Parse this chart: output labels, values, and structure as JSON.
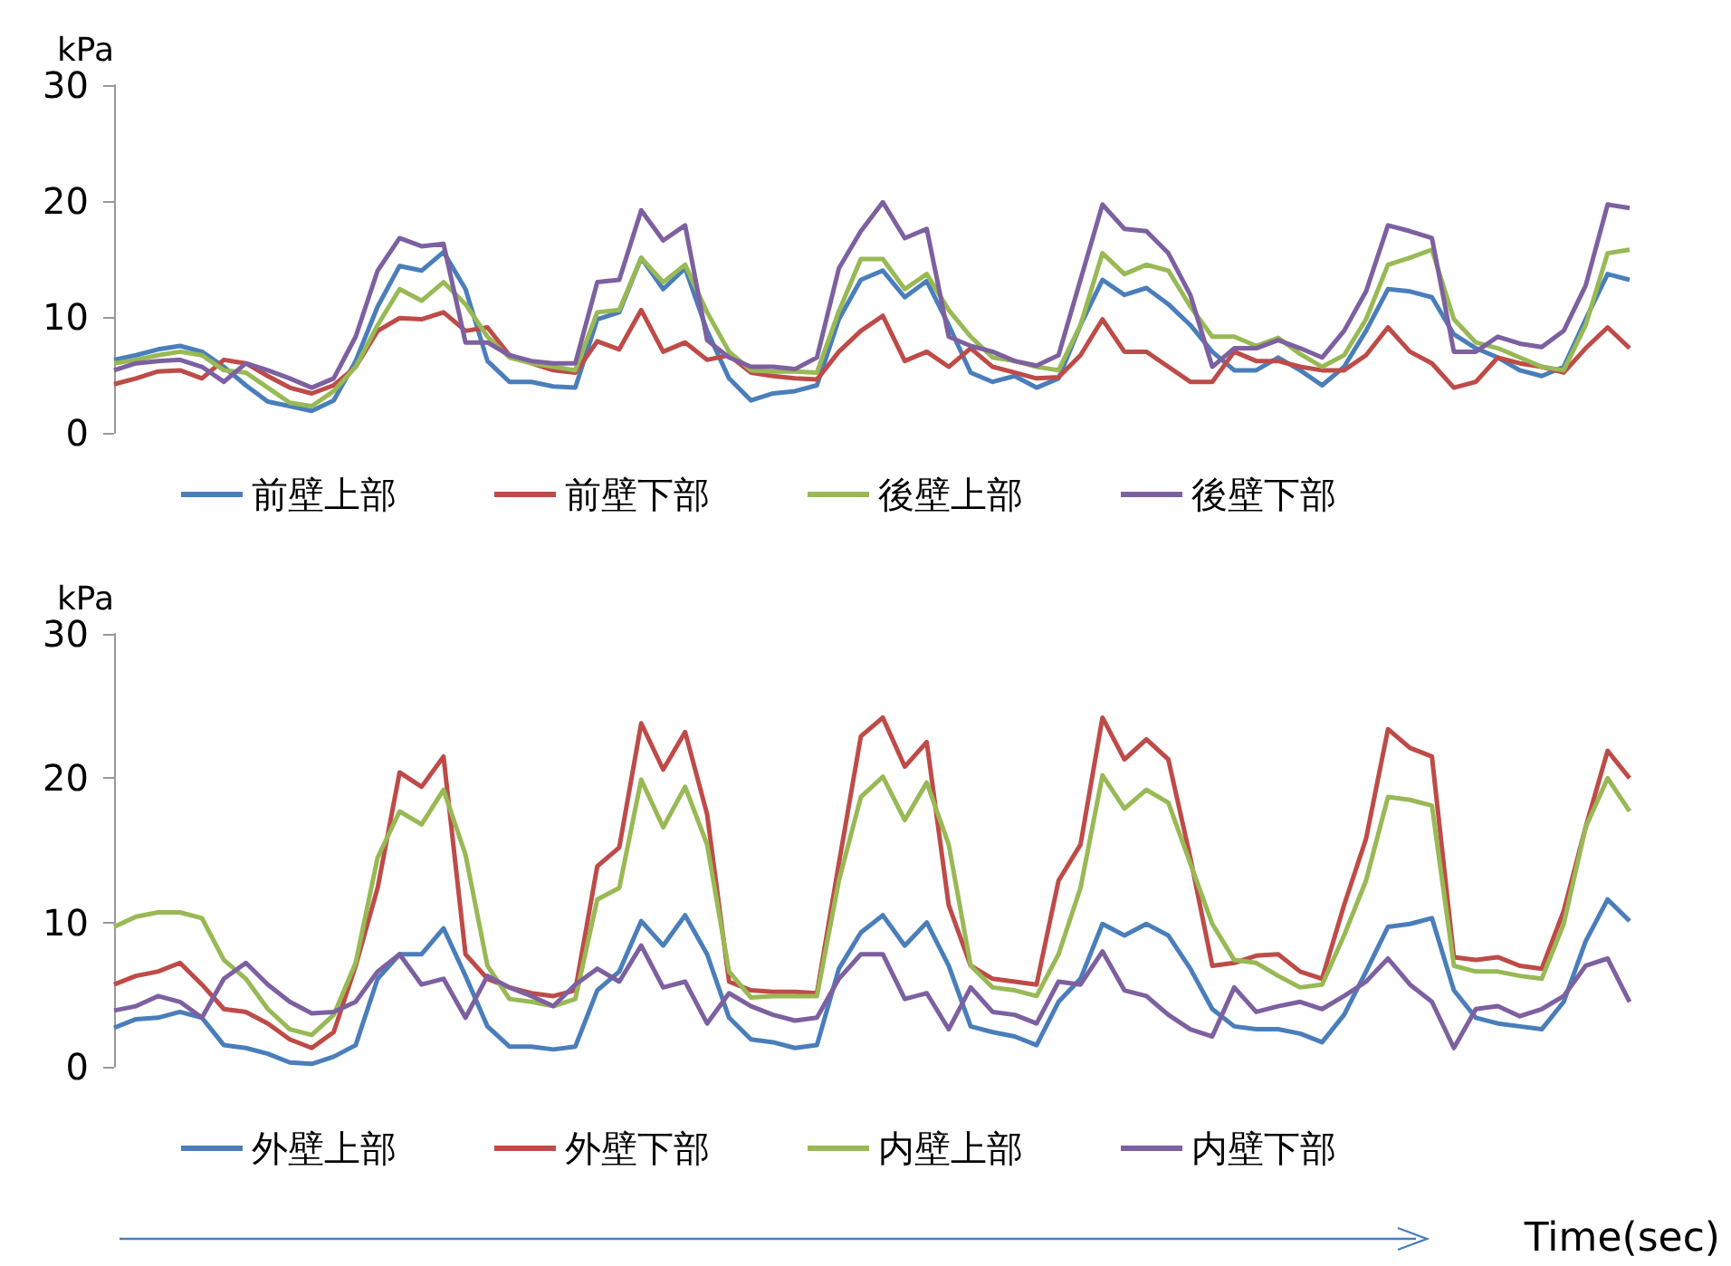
{
  "chart_data": [
    {
      "type": "line",
      "ylabel": "kPa",
      "ylim": [
        0,
        30
      ],
      "yticks": [
        0,
        10,
        20,
        30
      ],
      "grid": false,
      "legend": "bottom",
      "marker": "none",
      "line_style": "solid",
      "categories": [
        null,
        null,
        null,
        null,
        null,
        null,
        null,
        null,
        null,
        null,
        null,
        null,
        null,
        null,
        null,
        null,
        null,
        null,
        null,
        null,
        null,
        null,
        null,
        null,
        null,
        null,
        null,
        null,
        null,
        null,
        null,
        null,
        null,
        null,
        null,
        null,
        null,
        null,
        null,
        null,
        null,
        null,
        null,
        null,
        null,
        null,
        null,
        null,
        null,
        null,
        null,
        null,
        null,
        null,
        null,
        null,
        null,
        null,
        null,
        null,
        null,
        null,
        null,
        null,
        null,
        null,
        null,
        null,
        null,
        null
      ],
      "series": [
        {
          "name": "前壁上部",
          "color": "#4a7ebb",
          "values": [
            6.3,
            6.7,
            7.2,
            7.5,
            7.0,
            5.7,
            4.1,
            2.7,
            2.3,
            1.9,
            2.8,
            6.2,
            10.9,
            14.4,
            14.0,
            15.6,
            12.4,
            6.2,
            4.4,
            4.4,
            4.0,
            3.9,
            9.8,
            10.4,
            15.1,
            12.4,
            14.2,
            8.8,
            4.7,
            2.8,
            3.4,
            3.6,
            4.1,
            9.8,
            13.2,
            14.0,
            11.7,
            13.1,
            9.3,
            5.2,
            4.4,
            4.9,
            3.9,
            4.7,
            9.3,
            13.2,
            11.9,
            12.5,
            11.1,
            9.3,
            7.0,
            5.4,
            5.4,
            6.5,
            5.4,
            4.1,
            5.7,
            8.8,
            12.4,
            12.2,
            11.7,
            8.5,
            7.3,
            6.5,
            5.4,
            4.9,
            5.7,
            9.8,
            13.7,
            13.2
          ]
        },
        {
          "name": "前壁下部",
          "color": "#be4b48",
          "values": [
            4.2,
            4.7,
            5.3,
            5.4,
            4.7,
            6.3,
            6.0,
            4.9,
            3.9,
            3.4,
            4.1,
            5.7,
            8.8,
            9.9,
            9.8,
            10.4,
            8.8,
            9.1,
            6.7,
            6.0,
            5.4,
            5.2,
            7.9,
            7.2,
            10.6,
            7.0,
            7.8,
            6.3,
            6.7,
            5.2,
            4.9,
            4.7,
            4.6,
            7.0,
            8.8,
            10.1,
            6.2,
            7.0,
            5.7,
            7.3,
            5.7,
            5.2,
            4.7,
            4.8,
            6.7,
            9.8,
            7.0,
            7.0,
            5.7,
            4.4,
            4.4,
            7.0,
            6.2,
            6.2,
            5.7,
            5.4,
            5.4,
            6.7,
            9.1,
            7.0,
            6.0,
            3.9,
            4.4,
            6.5,
            6.0,
            5.7,
            5.2,
            7.3,
            9.1,
            7.3
          ]
        },
        {
          "name": "後壁上部",
          "color": "#98b954",
          "values": [
            6.0,
            6.3,
            6.7,
            7.0,
            6.7,
            5.4,
            5.2,
            3.9,
            2.6,
            2.3,
            3.6,
            5.7,
            9.3,
            12.4,
            11.4,
            13.0,
            11.1,
            8.3,
            6.5,
            6.0,
            5.7,
            5.4,
            10.4,
            10.6,
            15.1,
            13.0,
            14.5,
            10.4,
            7.0,
            5.4,
            5.3,
            5.3,
            5.2,
            10.5,
            15.0,
            15.0,
            12.4,
            13.7,
            10.6,
            8.3,
            6.5,
            6.2,
            5.7,
            5.4,
            9.3,
            15.5,
            13.7,
            14.5,
            14.0,
            10.9,
            8.3,
            8.3,
            7.5,
            8.2,
            6.8,
            5.7,
            6.7,
            9.8,
            14.5,
            15.1,
            15.8,
            9.8,
            7.8,
            7.3,
            6.5,
            5.7,
            5.4,
            9.3,
            15.5,
            15.8
          ]
        },
        {
          "name": "後壁下部",
          "color": "#7d60a0",
          "values": [
            5.4,
            6.0,
            6.2,
            6.3,
            5.7,
            4.4,
            6.0,
            5.4,
            4.7,
            3.9,
            4.7,
            8.3,
            14.0,
            16.8,
            16.1,
            16.3,
            7.8,
            7.8,
            6.7,
            6.2,
            6.0,
            6.0,
            13.0,
            13.2,
            19.2,
            16.6,
            17.9,
            8.0,
            6.5,
            5.7,
            5.7,
            5.5,
            6.5,
            14.2,
            17.4,
            19.9,
            16.8,
            17.6,
            8.3,
            7.5,
            7.0,
            6.2,
            5.8,
            6.7,
            13.2,
            19.7,
            17.6,
            17.4,
            15.5,
            11.9,
            5.7,
            7.3,
            7.3,
            8.0,
            7.3,
            6.5,
            8.8,
            12.2,
            17.9,
            17.4,
            16.8,
            7.0,
            7.0,
            8.3,
            7.7,
            7.4,
            8.8,
            12.7,
            19.7,
            19.4
          ]
        }
      ]
    },
    {
      "type": "line",
      "ylabel": "kPa",
      "xlabel": "Time(sec)",
      "ylim": [
        0,
        30
      ],
      "yticks": [
        0,
        10,
        20,
        30
      ],
      "grid": false,
      "legend": "bottom",
      "marker": "none",
      "line_style": "solid",
      "categories": [
        null,
        null,
        null,
        null,
        null,
        null,
        null,
        null,
        null,
        null,
        null,
        null,
        null,
        null,
        null,
        null,
        null,
        null,
        null,
        null,
        null,
        null,
        null,
        null,
        null,
        null,
        null,
        null,
        null,
        null,
        null,
        null,
        null,
        null,
        null,
        null,
        null,
        null,
        null,
        null,
        null,
        null,
        null,
        null,
        null,
        null,
        null,
        null,
        null,
        null,
        null,
        null,
        null,
        null,
        null,
        null,
        null,
        null,
        null,
        null,
        null,
        null,
        null,
        null,
        null,
        null,
        null,
        null,
        null,
        null
      ],
      "series": [
        {
          "name": "外壁上部",
          "color": "#4a7ebb",
          "values": [
            2.7,
            3.3,
            3.4,
            3.8,
            3.4,
            1.5,
            1.3,
            0.9,
            0.3,
            0.2,
            0.7,
            1.5,
            6.1,
            7.8,
            7.8,
            9.6,
            6.3,
            2.8,
            1.4,
            1.4,
            1.2,
            1.4,
            5.3,
            6.6,
            10.1,
            8.4,
            10.5,
            7.8,
            3.4,
            1.9,
            1.7,
            1.3,
            1.5,
            6.8,
            9.3,
            10.5,
            8.4,
            10.0,
            7.0,
            2.8,
            2.4,
            2.1,
            1.5,
            4.5,
            6.1,
            9.9,
            9.1,
            9.9,
            9.1,
            6.8,
            4.0,
            2.8,
            2.6,
            2.6,
            2.3,
            1.7,
            3.6,
            6.6,
            9.7,
            9.9,
            10.3,
            5.3,
            3.4,
            3.0,
            2.8,
            2.6,
            4.5,
            8.7,
            11.6,
            10.1
          ]
        },
        {
          "name": "外壁下部",
          "color": "#be4b48",
          "values": [
            5.7,
            6.3,
            6.6,
            7.2,
            5.7,
            4.0,
            3.8,
            3.0,
            1.9,
            1.3,
            2.4,
            7.0,
            12.4,
            20.4,
            19.4,
            21.5,
            7.8,
            6.1,
            5.5,
            5.1,
            4.9,
            5.3,
            13.9,
            15.2,
            23.8,
            20.6,
            23.2,
            17.5,
            5.9,
            5.3,
            5.2,
            5.2,
            5.1,
            14.1,
            22.9,
            24.2,
            20.8,
            22.5,
            11.2,
            7.0,
            6.1,
            5.9,
            5.7,
            12.9,
            15.4,
            24.2,
            21.3,
            22.7,
            21.3,
            14.5,
            7.0,
            7.2,
            7.7,
            7.8,
            6.6,
            6.1,
            11.2,
            15.8,
            23.4,
            22.1,
            21.5,
            7.6,
            7.4,
            7.6,
            7.0,
            6.8,
            10.8,
            16.6,
            21.9,
            20.0
          ]
        },
        {
          "name": "内壁上部",
          "color": "#98b954",
          "values": [
            9.7,
            10.4,
            10.7,
            10.7,
            10.3,
            7.4,
            6.1,
            4.0,
            2.6,
            2.2,
            3.6,
            7.2,
            14.5,
            17.7,
            16.8,
            19.2,
            14.7,
            7.0,
            4.7,
            4.5,
            4.2,
            4.7,
            11.6,
            12.4,
            19.9,
            16.6,
            19.4,
            15.4,
            6.6,
            4.8,
            4.9,
            4.9,
            4.9,
            12.9,
            18.7,
            20.1,
            17.1,
            19.7,
            15.4,
            7.0,
            5.5,
            5.3,
            4.9,
            7.8,
            12.4,
            20.2,
            17.9,
            19.2,
            18.3,
            14.1,
            9.9,
            7.4,
            7.2,
            6.3,
            5.5,
            5.7,
            9.1,
            12.9,
            18.7,
            18.5,
            18.1,
            7.0,
            6.6,
            6.6,
            6.3,
            6.1,
            9.9,
            16.6,
            20.0,
            17.7
          ]
        },
        {
          "name": "内壁下部",
          "color": "#7d60a0",
          "values": [
            3.9,
            4.2,
            4.9,
            4.5,
            3.4,
            6.1,
            7.2,
            5.7,
            4.5,
            3.7,
            3.8,
            4.5,
            6.6,
            7.8,
            5.7,
            6.1,
            3.4,
            6.3,
            5.5,
            4.9,
            4.2,
            5.7,
            6.8,
            5.9,
            8.4,
            5.5,
            5.9,
            3.0,
            5.1,
            4.2,
            3.6,
            3.2,
            3.4,
            6.1,
            7.8,
            7.8,
            4.7,
            5.1,
            2.6,
            5.5,
            3.8,
            3.6,
            3.0,
            5.9,
            5.7,
            8.0,
            5.3,
            4.9,
            3.6,
            2.6,
            2.1,
            5.5,
            3.8,
            4.2,
            4.5,
            4.0,
            4.9,
            5.9,
            7.5,
            5.7,
            4.5,
            1.3,
            4.0,
            4.2,
            3.5,
            4.0,
            4.9,
            7.0,
            7.5,
            4.5
          ]
        }
      ]
    }
  ]
}
